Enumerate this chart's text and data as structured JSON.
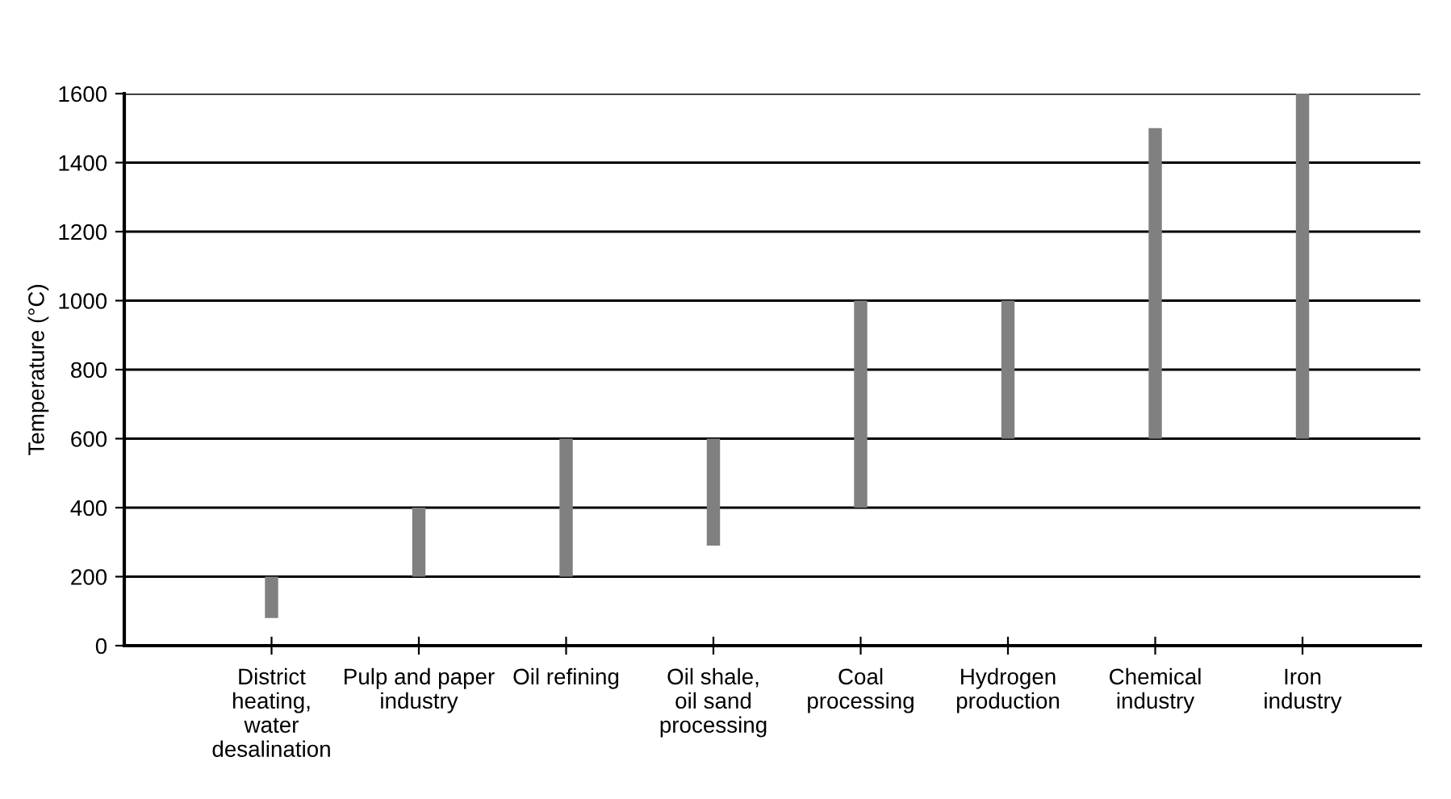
{
  "chart_data": {
    "type": "bar",
    "ylabel": "Temperature (°C)",
    "categories": [
      "District\nheating,\nwater\ndesalination",
      "Pulp and paper\nindustry",
      "Oil refining",
      "Oil shale,\noil sand\nprocessing",
      "Coal\nprocessing",
      "Hydrogen\nproduction",
      "Chemical\nindustry",
      "Iron\nindustry"
    ],
    "base": [
      80,
      200,
      200,
      290,
      400,
      600,
      600,
      600
    ],
    "values": [
      120,
      200,
      400,
      310,
      600,
      400,
      900,
      1000
    ],
    "color": "#808080",
    "ylim": [
      0,
      1600
    ],
    "yticks": [
      0,
      200,
      400,
      600,
      800,
      1000,
      1200,
      1400,
      1600
    ],
    "grid": "y"
  }
}
